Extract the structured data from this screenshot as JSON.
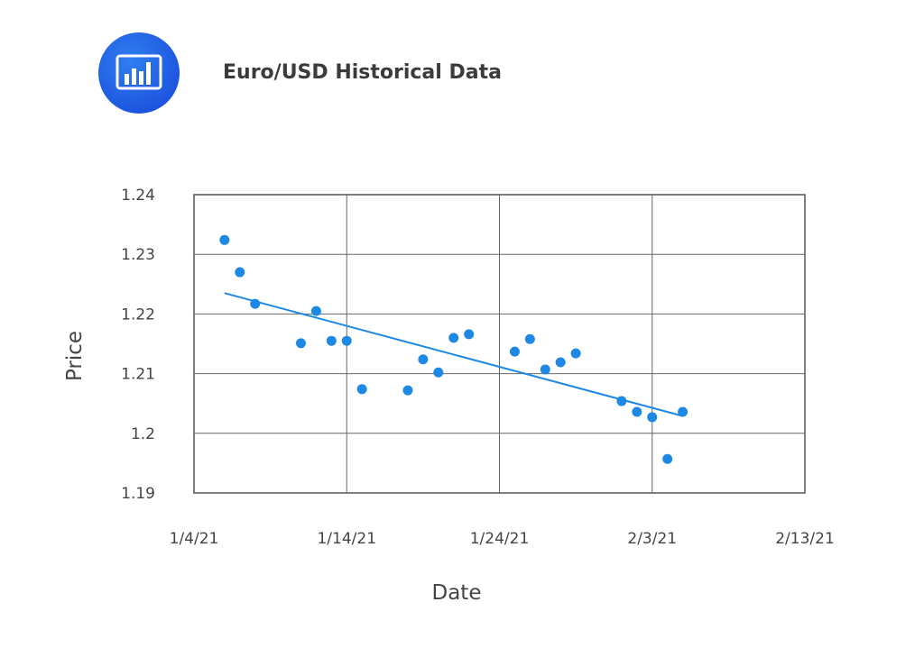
{
  "header": {
    "title": "Euro/USD Historical Data",
    "icon": "bar-chart-icon"
  },
  "chart_data": {
    "type": "scatter",
    "title": "",
    "xlabel": "Date",
    "ylabel": "Price",
    "xlim": [
      "2021-01-04",
      "2021-02-13"
    ],
    "ylim": [
      1.19,
      1.24
    ],
    "x_ticks": [
      "1/4/21",
      "1/14/21",
      "1/24/21",
      "2/3/21",
      "2/13/21"
    ],
    "y_ticks": [
      "1.19",
      "1.2",
      "1.21",
      "1.22",
      "1.23",
      "1.24"
    ],
    "grid": true,
    "color": "#1e88e5",
    "points": [
      {
        "x": "2021-01-06",
        "y": 1.2324
      },
      {
        "x": "2021-01-07",
        "y": 1.227
      },
      {
        "x": "2021-01-08",
        "y": 1.2217
      },
      {
        "x": "2021-01-11",
        "y": 1.2151
      },
      {
        "x": "2021-01-12",
        "y": 1.2205
      },
      {
        "x": "2021-01-13",
        "y": 1.2155
      },
      {
        "x": "2021-01-14",
        "y": 1.2155
      },
      {
        "x": "2021-01-15",
        "y": 1.2074
      },
      {
        "x": "2021-01-18",
        "y": 1.2072
      },
      {
        "x": "2021-01-19",
        "y": 1.2124
      },
      {
        "x": "2021-01-20",
        "y": 1.2102
      },
      {
        "x": "2021-01-21",
        "y": 1.216
      },
      {
        "x": "2021-01-22",
        "y": 1.2166
      },
      {
        "x": "2021-01-25",
        "y": 1.2137
      },
      {
        "x": "2021-01-26",
        "y": 1.2158
      },
      {
        "x": "2021-01-27",
        "y": 1.2107
      },
      {
        "x": "2021-01-28",
        "y": 1.2119
      },
      {
        "x": "2021-01-29",
        "y": 1.2134
      },
      {
        "x": "2021-02-01",
        "y": 1.2054
      },
      {
        "x": "2021-02-02",
        "y": 1.2036
      },
      {
        "x": "2021-02-03",
        "y": 1.2027
      },
      {
        "x": "2021-02-04",
        "y": 1.1957
      },
      {
        "x": "2021-02-05",
        "y": 1.2036
      }
    ],
    "trendline": [
      {
        "x": "2021-01-06",
        "y": 1.2235
      },
      {
        "x": "2021-02-05",
        "y": 1.2029
      }
    ]
  }
}
